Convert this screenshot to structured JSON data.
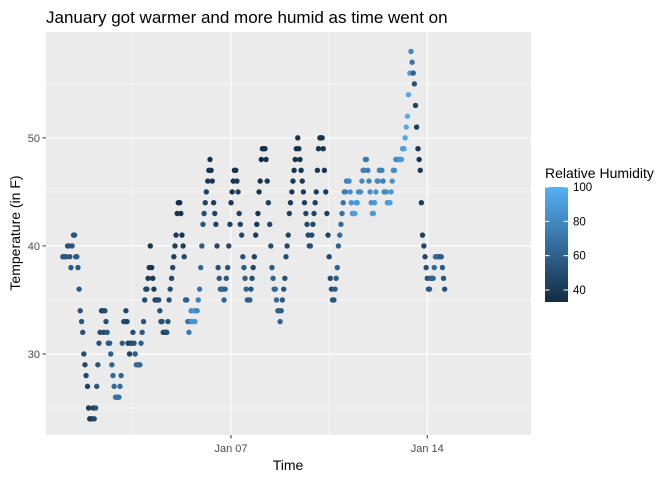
{
  "chart_data": {
    "type": "scatter",
    "title": "January got warmer and more humid as time went on",
    "xlabel": "Time",
    "ylabel": "Temperature (in F)",
    "x_unit": "days",
    "xlim": [
      0.4,
      17.7
    ],
    "ylim": [
      22.5,
      59.8
    ],
    "x_ticks": [
      {
        "value": 7,
        "label": "Jan 07"
      },
      {
        "value": 14,
        "label": "Jan 14"
      }
    ],
    "y_ticks": [
      {
        "value": 30,
        "label": "30"
      },
      {
        "value": 40,
        "label": "40"
      },
      {
        "value": 50,
        "label": "50"
      }
    ],
    "y_minor_ticks": [
      25,
      35,
      45,
      55
    ],
    "x_minor_ticks": [
      3.5,
      10.5
    ],
    "grid": true,
    "background": "#ebebeb",
    "legend": {
      "title": "Relative Humidity",
      "position": "right",
      "min": 33,
      "max": 100,
      "ticks": [
        40,
        60,
        80,
        100
      ],
      "color_low": "#132b43",
      "color_high": "#56b1f7"
    },
    "points": [
      [
        1.0,
        39,
        58
      ],
      [
        1.04,
        39,
        56
      ],
      [
        1.08,
        39,
        55
      ],
      [
        1.12,
        39,
        56
      ],
      [
        1.17,
        40,
        54
      ],
      [
        1.21,
        40,
        53
      ],
      [
        1.25,
        39,
        55
      ],
      [
        1.29,
        38,
        57
      ],
      [
        1.33,
        40,
        55
      ],
      [
        1.38,
        41,
        55
      ],
      [
        1.42,
        41,
        54
      ],
      [
        1.46,
        39,
        60
      ],
      [
        1.5,
        39,
        58
      ],
      [
        1.54,
        38,
        56
      ],
      [
        1.58,
        36,
        55
      ],
      [
        1.62,
        34,
        53
      ],
      [
        1.67,
        33,
        54
      ],
      [
        1.71,
        32,
        52
      ],
      [
        1.75,
        30,
        50
      ],
      [
        1.79,
        29,
        48
      ],
      [
        1.83,
        28,
        47
      ],
      [
        1.88,
        27,
        44
      ],
      [
        1.92,
        25,
        42
      ],
      [
        1.96,
        24,
        40
      ],
      [
        2.0,
        24,
        38
      ],
      [
        2.04,
        24,
        40
      ],
      [
        2.08,
        25,
        44
      ],
      [
        2.12,
        24,
        48
      ],
      [
        2.17,
        25,
        52
      ],
      [
        2.21,
        27,
        55
      ],
      [
        2.25,
        29,
        53
      ],
      [
        2.29,
        31,
        52
      ],
      [
        2.33,
        32,
        50
      ],
      [
        2.38,
        34,
        48
      ],
      [
        2.42,
        34,
        46
      ],
      [
        2.46,
        32,
        48
      ],
      [
        2.5,
        34,
        50
      ],
      [
        2.54,
        33,
        52
      ],
      [
        2.58,
        32,
        54
      ],
      [
        2.62,
        31,
        56
      ],
      [
        2.67,
        31,
        58
      ],
      [
        2.71,
        30,
        60
      ],
      [
        2.75,
        29,
        62
      ],
      [
        2.79,
        28,
        64
      ],
      [
        2.83,
        27,
        66
      ],
      [
        2.88,
        26,
        68
      ],
      [
        2.92,
        26,
        70
      ],
      [
        2.96,
        26,
        70
      ],
      [
        3.0,
        26,
        68
      ],
      [
        3.04,
        27,
        64
      ],
      [
        3.08,
        28,
        62
      ],
      [
        3.12,
        31,
        58
      ],
      [
        3.17,
        33,
        56
      ],
      [
        3.21,
        33,
        52
      ],
      [
        3.25,
        34,
        48
      ],
      [
        3.29,
        33,
        46
      ],
      [
        3.33,
        31,
        44
      ],
      [
        3.38,
        30,
        44
      ],
      [
        3.42,
        31,
        46
      ],
      [
        3.46,
        31,
        48
      ],
      [
        3.5,
        32,
        50
      ],
      [
        3.54,
        31,
        52
      ],
      [
        3.58,
        30,
        58
      ],
      [
        3.62,
        29,
        64
      ],
      [
        3.67,
        29,
        66
      ],
      [
        3.71,
        29,
        66
      ],
      [
        3.75,
        29,
        64
      ],
      [
        3.79,
        31,
        60
      ],
      [
        3.83,
        32,
        56
      ],
      [
        3.88,
        33,
        54
      ],
      [
        3.92,
        35,
        50
      ],
      [
        3.96,
        36,
        48
      ],
      [
        4.0,
        36,
        46
      ],
      [
        4.04,
        37,
        44
      ],
      [
        4.08,
        38,
        40
      ],
      [
        4.12,
        40,
        38
      ],
      [
        4.17,
        38,
        38
      ],
      [
        4.21,
        37,
        40
      ],
      [
        4.25,
        36,
        42
      ],
      [
        4.29,
        35,
        44
      ],
      [
        4.33,
        35,
        46
      ],
      [
        4.38,
        35,
        48
      ],
      [
        4.42,
        35,
        50
      ],
      [
        4.46,
        34,
        52
      ],
      [
        4.5,
        33,
        54
      ],
      [
        4.54,
        33,
        52
      ],
      [
        4.58,
        32,
        50
      ],
      [
        4.62,
        32,
        48
      ],
      [
        4.67,
        32,
        48
      ],
      [
        4.71,
        32,
        50
      ],
      [
        4.75,
        33,
        52
      ],
      [
        4.79,
        35,
        52
      ],
      [
        4.83,
        36,
        50
      ],
      [
        4.88,
        37,
        48
      ],
      [
        4.92,
        38,
        46
      ],
      [
        4.96,
        39,
        44
      ],
      [
        5.0,
        40,
        42
      ],
      [
        5.04,
        41,
        40
      ],
      [
        5.08,
        43,
        38
      ],
      [
        5.12,
        44,
        36
      ],
      [
        5.17,
        44,
        35
      ],
      [
        5.21,
        43,
        36
      ],
      [
        5.25,
        41,
        38
      ],
      [
        5.29,
        40,
        42
      ],
      [
        5.33,
        39,
        48
      ],
      [
        5.38,
        35,
        54
      ],
      [
        5.42,
        35,
        60
      ],
      [
        5.46,
        33,
        66
      ],
      [
        5.5,
        32,
        72
      ],
      [
        5.54,
        33,
        76
      ],
      [
        5.58,
        34,
        80
      ],
      [
        5.62,
        33,
        86
      ],
      [
        5.67,
        34,
        88
      ],
      [
        5.71,
        33,
        86
      ],
      [
        5.75,
        34,
        84
      ],
      [
        5.79,
        34,
        80
      ],
      [
        5.83,
        35,
        76
      ],
      [
        5.88,
        36,
        70
      ],
      [
        5.92,
        38,
        64
      ],
      [
        5.96,
        40,
        58
      ],
      [
        6.0,
        42,
        54
      ],
      [
        6.04,
        43,
        50
      ],
      [
        6.08,
        44,
        46
      ],
      [
        6.12,
        45,
        44
      ],
      [
        6.17,
        46,
        40
      ],
      [
        6.21,
        47,
        38
      ],
      [
        6.25,
        48,
        36
      ],
      [
        6.29,
        47,
        38
      ],
      [
        6.33,
        46,
        40
      ],
      [
        6.38,
        44,
        42
      ],
      [
        6.42,
        43,
        44
      ],
      [
        6.46,
        42,
        46
      ],
      [
        6.5,
        40,
        48
      ],
      [
        6.54,
        38,
        52
      ],
      [
        6.58,
        37,
        56
      ],
      [
        6.62,
        36,
        60
      ],
      [
        6.67,
        36,
        62
      ],
      [
        6.71,
        36,
        64
      ],
      [
        6.75,
        35,
        62
      ],
      [
        6.79,
        36,
        60
      ],
      [
        6.83,
        37,
        56
      ],
      [
        6.88,
        38,
        52
      ],
      [
        6.92,
        40,
        48
      ],
      [
        6.96,
        42,
        44
      ],
      [
        7.0,
        44,
        40
      ],
      [
        7.04,
        45,
        38
      ],
      [
        7.08,
        46,
        37
      ],
      [
        7.12,
        47,
        37
      ],
      [
        7.17,
        47,
        38
      ],
      [
        7.21,
        46,
        40
      ],
      [
        7.25,
        45,
        42
      ],
      [
        7.29,
        43,
        44
      ],
      [
        7.33,
        42,
        46
      ],
      [
        7.38,
        41,
        48
      ],
      [
        7.42,
        39,
        52
      ],
      [
        7.46,
        38,
        56
      ],
      [
        7.5,
        37,
        60
      ],
      [
        7.54,
        36,
        62
      ],
      [
        7.58,
        35,
        62
      ],
      [
        7.62,
        35,
        60
      ],
      [
        7.67,
        35,
        58
      ],
      [
        7.71,
        36,
        54
      ],
      [
        7.75,
        37,
        50
      ],
      [
        7.79,
        38,
        46
      ],
      [
        7.83,
        39,
        44
      ],
      [
        7.88,
        41,
        42
      ],
      [
        7.92,
        42,
        40
      ],
      [
        7.96,
        43,
        38
      ],
      [
        8.0,
        45,
        36
      ],
      [
        8.04,
        46,
        36
      ],
      [
        8.08,
        48,
        35
      ],
      [
        8.12,
        49,
        35
      ],
      [
        8.17,
        49,
        35
      ],
      [
        8.21,
        49,
        36
      ],
      [
        8.25,
        48,
        38
      ],
      [
        8.29,
        46,
        40
      ],
      [
        8.33,
        44,
        44
      ],
      [
        8.38,
        42,
        48
      ],
      [
        8.42,
        40,
        52
      ],
      [
        8.46,
        38,
        56
      ],
      [
        8.5,
        37,
        60
      ],
      [
        8.54,
        36,
        62
      ],
      [
        8.58,
        36,
        64
      ],
      [
        8.62,
        35,
        64
      ],
      [
        8.67,
        34,
        64
      ],
      [
        8.71,
        34,
        62
      ],
      [
        8.75,
        33,
        60
      ],
      [
        8.79,
        34,
        58
      ],
      [
        8.83,
        35,
        56
      ],
      [
        8.88,
        36,
        54
      ],
      [
        8.92,
        37,
        52
      ],
      [
        8.96,
        39,
        50
      ],
      [
        9.0,
        40,
        48
      ],
      [
        9.04,
        41,
        46
      ],
      [
        9.08,
        43,
        44
      ],
      [
        9.12,
        44,
        42
      ],
      [
        9.17,
        45,
        40
      ],
      [
        9.21,
        46,
        38
      ],
      [
        9.25,
        47,
        37
      ],
      [
        9.29,
        48,
        37
      ],
      [
        9.33,
        49,
        36
      ],
      [
        9.38,
        50,
        36
      ],
      [
        9.42,
        49,
        37
      ],
      [
        9.46,
        48,
        38
      ],
      [
        9.5,
        47,
        38
      ],
      [
        9.54,
        46,
        40
      ],
      [
        9.58,
        45,
        42
      ],
      [
        9.62,
        44,
        44
      ],
      [
        9.67,
        43,
        46
      ],
      [
        9.71,
        42,
        48
      ],
      [
        9.75,
        41,
        50
      ],
      [
        9.79,
        40,
        52
      ],
      [
        9.83,
        40,
        52
      ],
      [
        9.88,
        41,
        50
      ],
      [
        9.92,
        42,
        48
      ],
      [
        9.96,
        43,
        46
      ],
      [
        10.0,
        44,
        44
      ],
      [
        10.04,
        45,
        42
      ],
      [
        10.08,
        47,
        40
      ],
      [
        10.12,
        49,
        38
      ],
      [
        10.17,
        50,
        37
      ],
      [
        10.21,
        50,
        36
      ],
      [
        10.25,
        50,
        37
      ],
      [
        10.29,
        49,
        38
      ],
      [
        10.33,
        47,
        40
      ],
      [
        10.38,
        45,
        42
      ],
      [
        10.42,
        43,
        44
      ],
      [
        10.46,
        41,
        46
      ],
      [
        10.5,
        39,
        48
      ],
      [
        10.54,
        37,
        50
      ],
      [
        10.58,
        36,
        52
      ],
      [
        10.62,
        35,
        54
      ],
      [
        10.67,
        35,
        54
      ],
      [
        10.71,
        36,
        56
      ],
      [
        10.75,
        37,
        58
      ],
      [
        10.79,
        38,
        60
      ],
      [
        10.83,
        40,
        62
      ],
      [
        10.88,
        41,
        64
      ],
      [
        10.92,
        42,
        66
      ],
      [
        10.96,
        43,
        68
      ],
      [
        11.0,
        44,
        70
      ],
      [
        11.04,
        45,
        72
      ],
      [
        11.08,
        45,
        74
      ],
      [
        11.12,
        46,
        76
      ],
      [
        11.17,
        46,
        78
      ],
      [
        11.21,
        46,
        80
      ],
      [
        11.25,
        45,
        84
      ],
      [
        11.29,
        44,
        86
      ],
      [
        11.33,
        43,
        88
      ],
      [
        11.38,
        43,
        90
      ],
      [
        11.42,
        43,
        92
      ],
      [
        11.46,
        44,
        90
      ],
      [
        11.5,
        44,
        88
      ],
      [
        11.54,
        45,
        86
      ],
      [
        11.58,
        45,
        84
      ],
      [
        11.62,
        45,
        82
      ],
      [
        11.67,
        46,
        80
      ],
      [
        11.71,
        47,
        78
      ],
      [
        11.75,
        47,
        76
      ],
      [
        11.79,
        48,
        74
      ],
      [
        11.83,
        48,
        72
      ],
      [
        11.88,
        47,
        74
      ],
      [
        11.92,
        46,
        78
      ],
      [
        11.96,
        45,
        82
      ],
      [
        12.0,
        44,
        86
      ],
      [
        12.04,
        43,
        88
      ],
      [
        12.08,
        43,
        90
      ],
      [
        12.12,
        44,
        88
      ],
      [
        12.17,
        45,
        86
      ],
      [
        12.21,
        46,
        84
      ],
      [
        12.25,
        46,
        82
      ],
      [
        12.29,
        47,
        80
      ],
      [
        12.33,
        47,
        78
      ],
      [
        12.38,
        47,
        76
      ],
      [
        12.42,
        46,
        76
      ],
      [
        12.46,
        45,
        78
      ],
      [
        12.5,
        45,
        80
      ],
      [
        12.54,
        45,
        82
      ],
      [
        12.58,
        44,
        86
      ],
      [
        12.62,
        44,
        88
      ],
      [
        12.67,
        44,
        90
      ],
      [
        12.71,
        45,
        88
      ],
      [
        12.75,
        46,
        86
      ],
      [
        12.79,
        47,
        84
      ],
      [
        12.83,
        47,
        82
      ],
      [
        12.88,
        48,
        80
      ],
      [
        12.92,
        48,
        80
      ],
      [
        12.96,
        48,
        82
      ],
      [
        13.0,
        48,
        84
      ],
      [
        13.04,
        48,
        86
      ],
      [
        13.08,
        48,
        88
      ],
      [
        13.12,
        49,
        90
      ],
      [
        13.17,
        49,
        92
      ],
      [
        13.21,
        50,
        94
      ],
      [
        13.25,
        51,
        96
      ],
      [
        13.29,
        52,
        98
      ],
      [
        13.33,
        54,
        96
      ],
      [
        13.38,
        56,
        90
      ],
      [
        13.42,
        58,
        80
      ],
      [
        13.46,
        57,
        70
      ],
      [
        13.5,
        56,
        60
      ],
      [
        13.54,
        55,
        52
      ],
      [
        13.58,
        53,
        46
      ],
      [
        13.62,
        51,
        42
      ],
      [
        13.67,
        49,
        40
      ],
      [
        13.71,
        48,
        38
      ],
      [
        13.75,
        47,
        40
      ],
      [
        13.79,
        44,
        42
      ],
      [
        13.83,
        41,
        44
      ],
      [
        13.88,
        40,
        46
      ],
      [
        13.92,
        39,
        48
      ],
      [
        13.96,
        38,
        50
      ],
      [
        14.0,
        37,
        52
      ],
      [
        14.04,
        36,
        54
      ],
      [
        14.08,
        36,
        56
      ],
      [
        14.12,
        37,
        58
      ],
      [
        14.17,
        37,
        60
      ],
      [
        14.21,
        37,
        62
      ],
      [
        14.25,
        38,
        64
      ],
      [
        14.29,
        39,
        66
      ],
      [
        14.33,
        39,
        66
      ],
      [
        14.38,
        39,
        64
      ],
      [
        14.42,
        39,
        62
      ],
      [
        14.46,
        39,
        60
      ],
      [
        14.5,
        39,
        58
      ],
      [
        14.54,
        38,
        56
      ],
      [
        14.58,
        37,
        54
      ],
      [
        14.62,
        36,
        52
      ]
    ]
  }
}
